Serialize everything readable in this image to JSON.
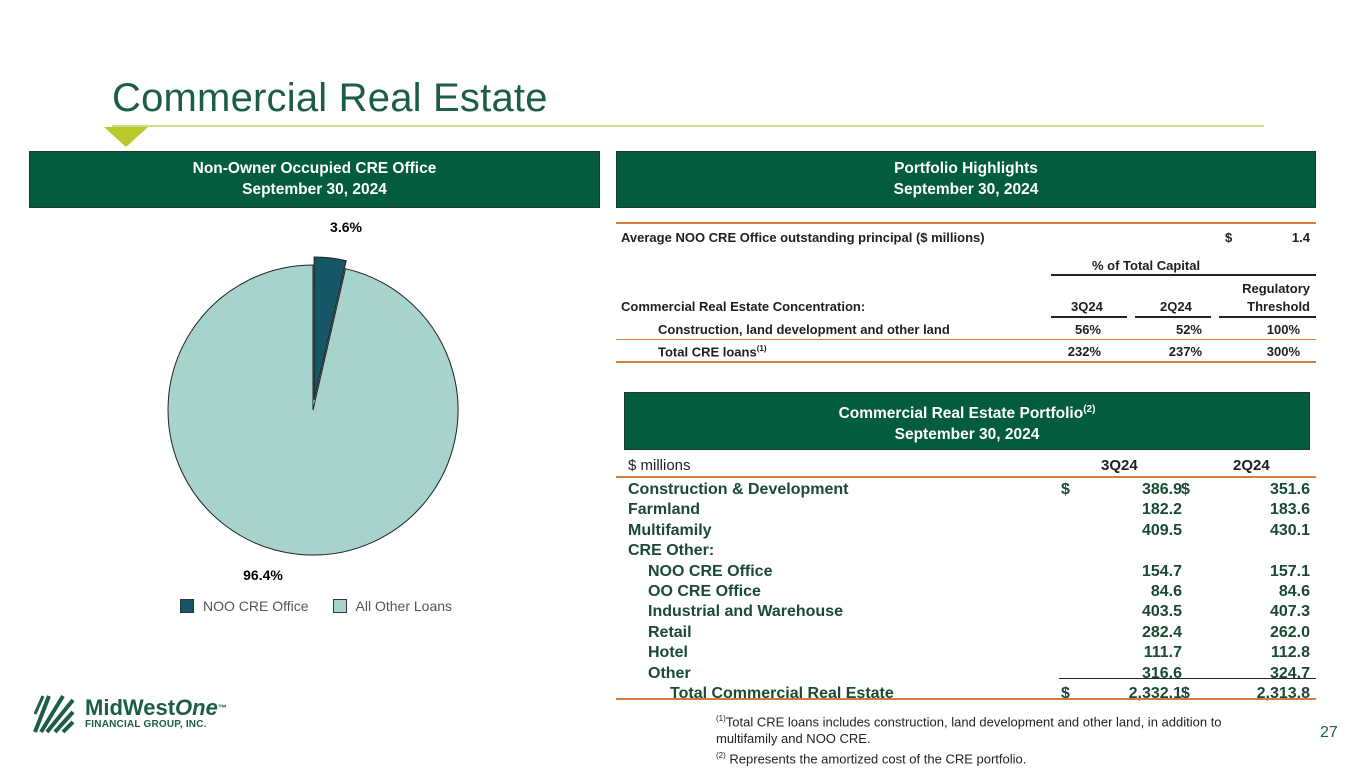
{
  "slide": {
    "title": "Commercial Real Estate",
    "page_number": "27"
  },
  "colors": {
    "brand_green": "#035c40",
    "accent_lime": "#b7c926",
    "noo_slice": "#155766",
    "other_slice": "#a6d3cb",
    "rule_orange": "#d47d3c"
  },
  "pie_panel": {
    "header_line1": "Non-Owner Occupied CRE Office",
    "header_line2": "September 30, 2024",
    "legend": [
      "NOO CRE Office",
      "All Other Loans"
    ]
  },
  "chart_data": {
    "type": "pie",
    "title": "Non-Owner Occupied CRE Office",
    "categories": [
      "NOO CRE Office",
      "All Other Loans"
    ],
    "values": [
      3.6,
      96.4
    ],
    "labels": [
      "3.6%",
      "96.4%"
    ],
    "exploded": [
      "NOO CRE Office"
    ],
    "legend": "bottom"
  },
  "highlights": {
    "header_line1": "Portfolio Highlights",
    "header_line2": "September 30, 2024",
    "avg_label": "Average NOO CRE Office outstanding principal ($ millions)",
    "avg_dollar": "$",
    "avg_value": "1.4",
    "capital_header": "% of Total Capital",
    "concentration_label": "Commercial Real Estate Concentration:",
    "col_3q24": "3Q24",
    "col_2q24": "2Q24",
    "col_reg_line1": "Regulatory",
    "col_reg_line2": "Threshold",
    "rows": [
      {
        "label": "Construction, land development and other land",
        "sup": "",
        "q3": "56%",
        "q2": "52%",
        "reg": "100%"
      },
      {
        "label": "Total CRE loans",
        "sup": "(1)",
        "q3": "232%",
        "q2": "237%",
        "reg": "300%"
      }
    ]
  },
  "portfolio": {
    "header_line1": "Commercial Real Estate Portfolio",
    "header_sup": "(2)",
    "header_line2": "September 30, 2024",
    "units": "$ millions",
    "col_3q24": "3Q24",
    "col_2q24": "2Q24",
    "rows": [
      {
        "label": "Construction & Development",
        "d1": "$",
        "v1": "386.9",
        "d2": "$",
        "v2": "351.6"
      },
      {
        "label": "Farmland",
        "d1": "",
        "v1": "182.2",
        "d2": "",
        "v2": "183.6"
      },
      {
        "label": "Multifamily",
        "d1": "",
        "v1": "409.5",
        "d2": "",
        "v2": "430.1"
      },
      {
        "label": "CRE Other:",
        "d1": "",
        "v1": "",
        "d2": "",
        "v2": ""
      },
      {
        "label": "NOO CRE Office",
        "d1": "",
        "v1": "154.7",
        "d2": "",
        "v2": "157.1"
      },
      {
        "label": "OO CRE Office",
        "d1": "",
        "v1": "84.6",
        "d2": "",
        "v2": "84.6"
      },
      {
        "label": "Industrial and Warehouse",
        "d1": "",
        "v1": "403.5",
        "d2": "",
        "v2": "407.3"
      },
      {
        "label": "Retail",
        "d1": "",
        "v1": "282.4",
        "d2": "",
        "v2": "262.0"
      },
      {
        "label": "Hotel",
        "d1": "",
        "v1": "111.7",
        "d2": "",
        "v2": "112.8"
      },
      {
        "label": "Other",
        "d1": "",
        "v1": "316.6",
        "d2": "",
        "v2": "324.7"
      },
      {
        "label": "Total Commercial Real Estate",
        "d1": "$",
        "v1": "2,332.1",
        "d2": "$",
        "v2": "2,313.8"
      }
    ]
  },
  "footnotes": {
    "fn1_sup": "(1)",
    "fn1_text": "Total CRE loans includes construction, land development and other land, in addition to multifamily and NOO CRE.",
    "fn2_sup": "(2)",
    "fn2_text": " Represents the amortized cost of the CRE portfolio."
  },
  "logo": {
    "name_part1": "MidWest",
    "name_part2": "One",
    "tm": "™",
    "subtitle": "FINANCIAL GROUP, INC."
  }
}
